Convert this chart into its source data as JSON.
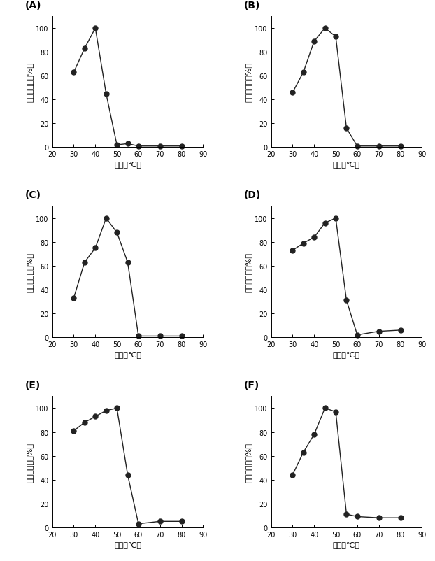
{
  "panels": [
    {
      "label": "(A)",
      "x": [
        30,
        35,
        40,
        45,
        50,
        55,
        60,
        70,
        80
      ],
      "y": [
        63,
        83,
        100,
        45,
        2,
        3,
        1,
        1,
        1
      ]
    },
    {
      "label": "(B)",
      "x": [
        30,
        35,
        40,
        45,
        50,
        55,
        60,
        70,
        80
      ],
      "y": [
        46,
        63,
        89,
        100,
        93,
        16,
        1,
        1,
        1
      ]
    },
    {
      "label": "(C)",
      "x": [
        30,
        35,
        40,
        45,
        50,
        55,
        60,
        70,
        80
      ],
      "y": [
        33,
        63,
        75,
        100,
        88,
        63,
        1,
        1,
        1
      ]
    },
    {
      "label": "(D)",
      "x": [
        30,
        35,
        40,
        45,
        50,
        55,
        60,
        70,
        80
      ],
      "y": [
        73,
        79,
        84,
        96,
        100,
        31,
        2,
        5,
        6
      ]
    },
    {
      "label": "(E)",
      "x": [
        30,
        35,
        40,
        45,
        50,
        55,
        60,
        70,
        80
      ],
      "y": [
        81,
        88,
        93,
        98,
        100,
        44,
        3,
        5,
        5
      ]
    },
    {
      "label": "(F)",
      "x": [
        30,
        35,
        40,
        45,
        50,
        55,
        60,
        70,
        80
      ],
      "y": [
        44,
        63,
        78,
        100,
        97,
        11,
        9,
        8,
        8
      ]
    }
  ],
  "xlabel": "温度（℃）",
  "ylabel": "相対的活性（%）",
  "xlim": [
    20,
    90
  ],
  "ylim": [
    0,
    110
  ],
  "xticks": [
    20,
    30,
    40,
    50,
    60,
    70,
    80,
    90
  ],
  "yticks": [
    0,
    20,
    40,
    60,
    80,
    100
  ],
  "marker": "o",
  "markersize": 5,
  "linewidth": 1.0,
  "color": "#222222",
  "background": "white",
  "label_fontsize": 10,
  "tick_fontsize": 7,
  "axis_label_fontsize": 8
}
